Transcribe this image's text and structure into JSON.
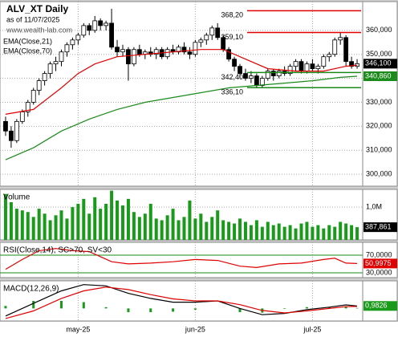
{
  "chart_data": [
    {
      "type": "candlestick",
      "title": "ALV_XT Daily",
      "subtitle": "as of 11/07/2025",
      "watermark": "www.wealth-lab.com",
      "xlim": [
        -1,
        64
      ],
      "ylim": [
        295,
        372
      ],
      "yticks": [
        {
          "value": 300,
          "label": "300,000"
        },
        {
          "value": 310,
          "label": "310,000"
        },
        {
          "value": 320,
          "label": "320,000"
        },
        {
          "value": 330,
          "label": "330,000"
        },
        {
          "value": 340,
          "label": "340,000"
        },
        {
          "value": 350,
          "label": "350,000"
        },
        {
          "value": 360,
          "label": "360,000"
        }
      ],
      "open": [
        322,
        318,
        314,
        322,
        326,
        330,
        335,
        339,
        342,
        346,
        347,
        351,
        354,
        356,
        358,
        362,
        360,
        364,
        362,
        363,
        353,
        351,
        352,
        346,
        352,
        350,
        351,
        350,
        352,
        349,
        352,
        351,
        353,
        351,
        350,
        355,
        356,
        358,
        361,
        357,
        352,
        348,
        345,
        342,
        340,
        341,
        337,
        340,
        343,
        341,
        343,
        342,
        345,
        347,
        343,
        346,
        344,
        345,
        349,
        350,
        356,
        357,
        347,
        345
      ],
      "high": [
        324,
        320,
        323,
        327,
        331,
        336,
        340,
        343,
        347,
        349,
        352,
        355,
        357,
        359,
        363,
        363,
        366,
        365,
        364,
        369,
        356,
        354,
        353,
        353,
        354,
        352,
        353,
        353,
        353,
        353,
        354,
        354,
        355,
        353,
        356,
        357,
        359,
        362,
        363,
        358,
        353,
        349,
        346,
        344,
        343,
        342,
        341,
        344,
        344,
        344,
        345,
        346,
        348,
        348,
        347,
        348,
        346,
        350,
        351,
        357,
        359,
        358,
        349,
        348
      ],
      "low": [
        316,
        311,
        313,
        321,
        324,
        329,
        333,
        337,
        340,
        343,
        345,
        349,
        352,
        354,
        357,
        358,
        359,
        360,
        360,
        352,
        349,
        349,
        339,
        345,
        349,
        348,
        349,
        348,
        348,
        348,
        350,
        350,
        350,
        348,
        349,
        353,
        354,
        356,
        356,
        351,
        347,
        343,
        340,
        339,
        338,
        336,
        336,
        339,
        339,
        340,
        341,
        341,
        343,
        342,
        342,
        343,
        342,
        344,
        347,
        349,
        354,
        345,
        344,
        344
      ],
      "close": [
        318,
        314,
        322,
        326,
        330,
        335,
        339,
        342,
        346,
        347,
        351,
        354,
        356,
        358,
        362,
        360,
        364,
        362,
        363,
        353,
        351,
        352,
        346,
        352,
        350,
        351,
        350,
        352,
        349,
        352,
        351,
        353,
        351,
        350,
        355,
        356,
        358,
        361,
        357,
        352,
        348,
        345,
        342,
        340,
        341,
        337,
        340,
        343,
        341,
        343,
        342,
        345,
        347,
        343,
        346,
        344,
        345,
        349,
        350,
        356,
        357,
        347,
        345,
        346.1
      ],
      "series": [
        {
          "name": "EMA(Close,21)",
          "color": "#e00000",
          "x": [
            0,
            5,
            10,
            13,
            16,
            20,
            25,
            30,
            35,
            39,
            43,
            47,
            52,
            57,
            61,
            63
          ],
          "values": [
            325,
            327,
            336,
            342,
            346,
            349,
            350,
            351,
            352,
            352,
            348,
            344,
            343,
            343,
            345,
            345.5
          ]
        },
        {
          "name": "EMA(Close,70)",
          "color": "#1a8a1a",
          "x": [
            0,
            5,
            10,
            15,
            20,
            25,
            30,
            35,
            40,
            45,
            50,
            55,
            60,
            63
          ],
          "values": [
            306,
            311,
            318,
            323,
            327,
            330,
            332,
            334,
            336,
            337,
            338,
            339,
            340.4,
            340.86
          ]
        }
      ],
      "levels": [
        {
          "value": 368.2,
          "label": "368,20",
          "color": "#e00000"
        },
        {
          "value": 359.1,
          "label": "359,10",
          "color": "#e00000"
        },
        {
          "value": 342.4,
          "label": "342,40",
          "color": "#1a8a1a"
        },
        {
          "value": 336.1,
          "label": "336,10",
          "color": "#1a8a1a"
        }
      ],
      "value_tags": [
        {
          "value": 346.1,
          "label": "346,100",
          "color": "#000000"
        },
        {
          "value": 340.86,
          "label": "340,860",
          "color": "#1a8a1a"
        }
      ]
    },
    {
      "type": "bar",
      "title": "Volume",
      "color": "#1a9a1a",
      "xlim": [
        -1,
        64
      ],
      "ylim": [
        0,
        1540000
      ],
      "yticks": [
        {
          "value": 1000000,
          "label": "1,0M"
        }
      ],
      "values": [
        1400000,
        1150000,
        950000,
        900000,
        850000,
        700000,
        950000,
        800000,
        600000,
        750000,
        900000,
        650000,
        1000000,
        1100000,
        1250000,
        800000,
        1300000,
        950000,
        1100000,
        1500000,
        1200000,
        1050000,
        1250000,
        850000,
        700000,
        800000,
        1100000,
        650000,
        600000,
        750000,
        950000,
        600000,
        700000,
        1200000,
        650000,
        800000,
        550000,
        700000,
        900000,
        600000,
        550000,
        500000,
        650000,
        550000,
        450000,
        600000,
        400000,
        550000,
        450000,
        500000,
        400000,
        450000,
        350000,
        500000,
        550000,
        400000,
        450000,
        350000,
        450000,
        400000,
        550000,
        500000,
        450000,
        387861
      ],
      "value_tags": [
        {
          "value": 387861,
          "label": "387,861",
          "color": "#000000"
        }
      ]
    },
    {
      "type": "line",
      "title": "RSI(Close,14), SC>70, SV<30",
      "xlim": [
        -1,
        64
      ],
      "ylim": [
        19,
        99
      ],
      "grid_color": "#1a8a1a",
      "yticks": [
        {
          "value": 70,
          "label": "70,0000"
        },
        {
          "value": 30,
          "label": "30,0000"
        }
      ],
      "series": [
        {
          "color": "#e00000",
          "x": [
            0,
            3,
            6,
            9,
            12,
            15,
            19,
            22,
            26,
            30,
            34,
            38,
            42,
            45,
            49,
            53,
            57,
            59,
            61,
            63
          ],
          "values": [
            38,
            60,
            80,
            85,
            80,
            78,
            55,
            50,
            52,
            55,
            60,
            58,
            45,
            42,
            50,
            52,
            60,
            63,
            52,
            50.9975
          ]
        }
      ],
      "value_tags": [
        {
          "value": 50.9975,
          "label": "50,9975",
          "color": "#e00000"
        }
      ]
    },
    {
      "type": "line",
      "title": "MACD(12,26,9)",
      "xlim": [
        -1,
        64
      ],
      "ylim": [
        -5,
        11
      ],
      "series": [
        {
          "color": "#000000",
          "x": [
            0,
            5,
            10,
            14,
            18,
            22,
            26,
            30,
            34,
            38,
            42,
            46,
            50,
            54,
            58,
            61,
            63
          ],
          "values": [
            -3,
            2,
            7,
            9.5,
            9,
            6,
            4,
            2.5,
            2.5,
            3,
            0,
            -2.5,
            -2,
            -0.5,
            0.5,
            1.4,
            0.9826
          ]
        },
        {
          "color": "#e00000",
          "x": [
            0,
            5,
            10,
            14,
            18,
            22,
            26,
            30,
            34,
            38,
            42,
            46,
            50,
            54,
            58,
            61,
            63
          ],
          "values": [
            -4,
            -1,
            4,
            7,
            8.5,
            7.5,
            5.5,
            3.8,
            3,
            3,
            1.5,
            -0.8,
            -1.8,
            -1,
            0,
            0.7,
            0.8
          ]
        }
      ],
      "histogram": {
        "color": "#1a9a1a",
        "x": [
          0,
          5,
          10,
          14,
          18,
          22,
          26,
          30,
          34,
          38,
          42,
          46,
          50,
          54,
          58,
          61,
          63
        ],
        "values": [
          1,
          3,
          3,
          2.5,
          0.5,
          -1.5,
          -1.5,
          -1.3,
          -0.5,
          0,
          -1.5,
          -1.7,
          -0.2,
          0.5,
          0.5,
          0.7,
          0.18
        ]
      },
      "value_tags": [
        {
          "value": 0.9826,
          "label": "0,9826",
          "color": "#1a9a1a"
        }
      ],
      "xticks": [
        {
          "value": 13,
          "label": "may-25"
        },
        {
          "value": 34,
          "label": "jun-25"
        },
        {
          "value": 55,
          "label": "jul-25"
        }
      ]
    }
  ]
}
